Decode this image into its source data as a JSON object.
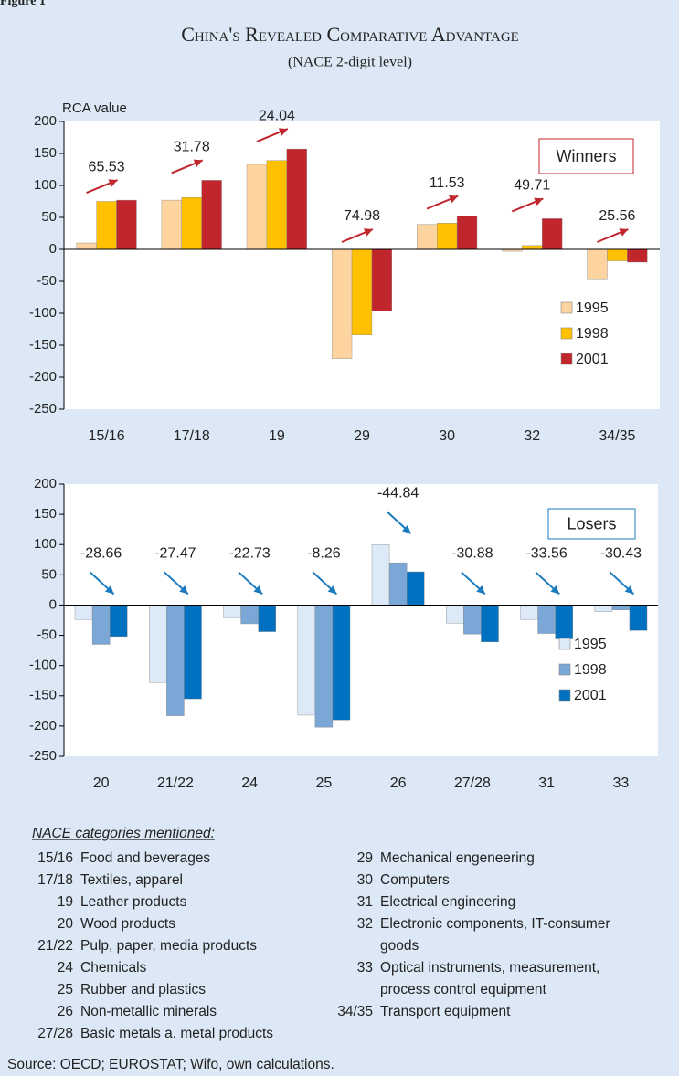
{
  "figure_label": "Figure 1",
  "chart_data": [
    {
      "type": "bar",
      "title": "China's Revealed Comparative Advantage",
      "subtitle": "(NACE 2-digit level)",
      "y_label": "RCA value",
      "panel_label": "Winners",
      "annotation_color": "#c0262c",
      "categories": [
        "15/16",
        "17/18",
        "19",
        "29",
        "30",
        "32",
        "34/35"
      ],
      "series": [
        {
          "name": "1995",
          "color": "#fdd3a0",
          "values": [
            10,
            77,
            133,
            -171,
            39,
            -3,
            -46
          ]
        },
        {
          "name": "1998",
          "color": "#ffc000",
          "values": [
            75,
            81,
            139,
            -134,
            41,
            6,
            -18
          ]
        },
        {
          "name": "2001",
          "color": "#c0262c",
          "values": [
            77,
            108,
            157,
            -96,
            52,
            48,
            -20
          ]
        }
      ],
      "changes": [
        65.53,
        31.78,
        24.04,
        74.98,
        11.53,
        49.71,
        25.56
      ],
      "ylim": [
        -250,
        200
      ],
      "yticks": [
        -250,
        -200,
        -150,
        -100,
        -50,
        0,
        50,
        100,
        150,
        200
      ]
    },
    {
      "type": "bar",
      "panel_label": "Losers",
      "annotation_color": "#1a7bbf",
      "categories": [
        "20",
        "21/22",
        "24",
        "25",
        "26",
        "27/28",
        "31",
        "33"
      ],
      "series": [
        {
          "name": "1995",
          "color": "#dce9f7",
          "values": [
            -24,
            -128,
            -21,
            -182,
            100,
            -30,
            -24,
            -11
          ]
        },
        {
          "name": "1998",
          "color": "#7ba7d7",
          "values": [
            -65,
            -183,
            -31,
            -202,
            70,
            -48,
            -47,
            -8
          ]
        },
        {
          "name": "2001",
          "color": "#0070c0",
          "values": [
            -52,
            -155,
            -44,
            -190,
            55,
            -61,
            -56,
            -42
          ]
        }
      ],
      "changes": [
        -28.66,
        -27.47,
        -22.73,
        -8.26,
        -44.84,
        -30.88,
        -33.56,
        -30.43
      ],
      "ylim": [
        -250,
        200
      ],
      "yticks": [
        -250,
        -200,
        -150,
        -100,
        -50,
        0,
        50,
        100,
        150,
        200
      ]
    }
  ],
  "notes": {
    "heading": "NACE categories mentioned:",
    "items": [
      {
        "code": "15/16",
        "lines": [
          "Food and beverages"
        ],
        "color": "#c0262c"
      },
      {
        "code": "17/18",
        "lines": [
          "Textiles, apparel"
        ],
        "color": "#c0262c"
      },
      {
        "code": "19",
        "lines": [
          "Leather products"
        ],
        "color": "#c0262c"
      },
      {
        "code": "20",
        "lines": [
          "Wood products"
        ],
        "color": "#1a7bbf"
      },
      {
        "code": "21/22",
        "lines": [
          "Pulp, paper, media products"
        ],
        "color": "#1a7bbf"
      },
      {
        "code": "24",
        "lines": [
          "Chemicals"
        ],
        "color": "#1a7bbf"
      },
      {
        "code": "25",
        "lines": [
          "Rubber and plastics"
        ],
        "color": "#1a7bbf"
      },
      {
        "code": "26",
        "lines": [
          "Non-metallic minerals"
        ],
        "color": "#1a7bbf"
      },
      {
        "code": "27/28",
        "lines": [
          "Basic metals a. metal products"
        ],
        "color": "#1a7bbf"
      },
      {
        "code": "29",
        "lines": [
          "Mechanical engeneering"
        ],
        "color": "#c0262c"
      },
      {
        "code": "30",
        "lines": [
          "Computers"
        ],
        "color": "#c0262c"
      },
      {
        "code": "31",
        "lines": [
          "Electrical engineering"
        ],
        "color": "#1a7bbf"
      },
      {
        "code": "32",
        "lines": [
          "Electronic components, IT-consumer",
          "goods"
        ],
        "color": "#c0262c"
      },
      {
        "code": "33",
        "lines": [
          "Optical instruments, measurement,",
          "process control equipment"
        ],
        "color": "#1a7bbf"
      },
      {
        "code": "34/35",
        "lines": [
          "Transport equipment"
        ],
        "color": "#c0262c"
      }
    ]
  },
  "source": "Source: OECD; EUROSTAT; Wifo, own calculations."
}
